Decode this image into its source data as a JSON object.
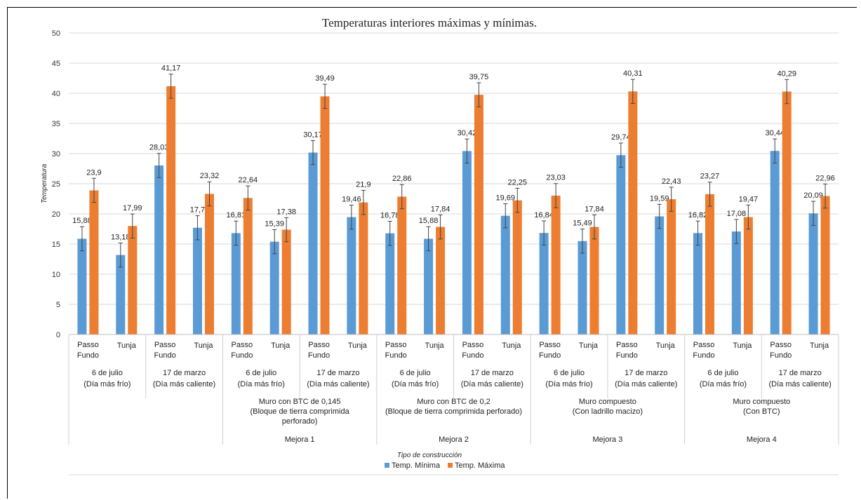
{
  "chart_data": {
    "type": "bar",
    "title": "Temperaturas interiores máximas y mínimas.",
    "xlabel": "Tipo de construcción",
    "ylabel": "Temperatura",
    "ylim": [
      0,
      50
    ],
    "yticks": [
      0,
      5,
      10,
      15,
      20,
      25,
      30,
      35,
      40,
      45,
      50
    ],
    "grid": true,
    "legend_position": "bottom",
    "categories": [
      {
        "name": [
          "Passo",
          "Fundo"
        ],
        "date": [
          "6 de julio",
          "(Día más frío)"
        ],
        "group": "",
        "group_note": []
      },
      {
        "name": [
          "Tunja"
        ],
        "date": [
          "6 de julio",
          "(Día más frío)"
        ],
        "group": "",
        "group_note": []
      },
      {
        "name": [
          "Passo",
          "Fundo"
        ],
        "date": [
          "17 de marzo",
          "(Día más caliente)"
        ],
        "group": "",
        "group_note": []
      },
      {
        "name": [
          "Tunja"
        ],
        "date": [
          "17 de marzo",
          "(Día más caliente)"
        ],
        "group": "",
        "group_note": []
      },
      {
        "name": [
          "Passo",
          "Fundo"
        ],
        "date": [
          "6 de julio",
          "(Día más frío)"
        ],
        "group": "Mejora 1",
        "group_note": [
          "Muro con BTC de 0,145",
          "(Bloque de tierra comprimida",
          "perforado)"
        ]
      },
      {
        "name": [
          "Tunja"
        ],
        "date": [
          "6 de julio",
          "(Día más frío)"
        ],
        "group": "Mejora 1",
        "group_note": [
          "Muro con BTC de 0,145",
          "(Bloque de tierra comprimida",
          "perforado)"
        ]
      },
      {
        "name": [
          "Passo",
          "Fundo"
        ],
        "date": [
          "17 de marzo",
          "(Día más caliente)"
        ],
        "group": "Mejora 1",
        "group_note": [
          "Muro con BTC de 0,145",
          "(Bloque de tierra comprimida",
          "perforado)"
        ]
      },
      {
        "name": [
          "Tunja"
        ],
        "date": [
          "17 de marzo",
          "(Día más caliente)"
        ],
        "group": "Mejora 1",
        "group_note": [
          "Muro con BTC de 0,145",
          "(Bloque de tierra comprimida",
          "perforado)"
        ]
      },
      {
        "name": [
          "Passo",
          "Fundo"
        ],
        "date": [
          "6 de julio",
          "(Día más frío)"
        ],
        "group": "Mejora 2",
        "group_note": [
          "Muro con BTC de 0,2",
          "(Bloque de tierra comprimida perforado)"
        ]
      },
      {
        "name": [
          "Tunja"
        ],
        "date": [
          "6 de julio",
          "(Día más frío)"
        ],
        "group": "Mejora 2",
        "group_note": [
          "Muro con BTC de 0,2",
          "(Bloque de tierra comprimida perforado)"
        ]
      },
      {
        "name": [
          "Passo",
          "Fundo"
        ],
        "date": [
          "17 de marzo",
          "(Día más caliente)"
        ],
        "group": "Mejora 2",
        "group_note": [
          "Muro con BTC de 0,2",
          "(Bloque de tierra comprimida perforado)"
        ]
      },
      {
        "name": [
          "Tunja"
        ],
        "date": [
          "17 de marzo",
          "(Día más caliente)"
        ],
        "group": "Mejora 2",
        "group_note": [
          "Muro con BTC de 0,2",
          "(Bloque de tierra comprimida perforado)"
        ]
      },
      {
        "name": [
          "Passo",
          "Fundo"
        ],
        "date": [
          "6 de julio",
          "(Día más frío)"
        ],
        "group": "Mejora 3",
        "group_note": [
          "Muro compuesto",
          "(Con ladrillo macizo)"
        ]
      },
      {
        "name": [
          "Tunja"
        ],
        "date": [
          "6 de julio",
          "(Día más frío)"
        ],
        "group": "Mejora 3",
        "group_note": [
          "Muro compuesto",
          "(Con ladrillo macizo)"
        ]
      },
      {
        "name": [
          "Passo",
          "Fundo"
        ],
        "date": [
          "17 de marzo",
          "(Día más caliente)"
        ],
        "group": "Mejora 3",
        "group_note": [
          "Muro compuesto",
          "(Con ladrillo macizo)"
        ]
      },
      {
        "name": [
          "Tunja"
        ],
        "date": [
          "17 de marzo",
          "(Día más caliente)"
        ],
        "group": "Mejora 3",
        "group_note": [
          "Muro compuesto",
          "(Con ladrillo macizo)"
        ]
      },
      {
        "name": [
          "Passo",
          "Fundo"
        ],
        "date": [
          "6 de julio",
          "(Día más frío)"
        ],
        "group": "Mejora 4",
        "group_note": [
          "Muro compuesto",
          "(Con BTC)"
        ]
      },
      {
        "name": [
          "Tunja"
        ],
        "date": [
          "6 de julio",
          "(Día más frío)"
        ],
        "group": "Mejora 4",
        "group_note": [
          "Muro compuesto",
          "(Con BTC)"
        ]
      },
      {
        "name": [
          "Passo",
          "Fundo"
        ],
        "date": [
          "17 de marzo",
          "(Día más caliente)"
        ],
        "group": "Mejora 4",
        "group_note": [
          "Muro compuesto",
          "(Con BTC)"
        ]
      },
      {
        "name": [
          "Tunja"
        ],
        "date": [
          "17 de marzo",
          "(Día más caliente)"
        ],
        "group": "Mejora 4",
        "group_note": [
          "Muro compuesto",
          "(Con BTC)"
        ]
      }
    ],
    "series": [
      {
        "name": "Temp. Mínima",
        "color": "#5b9bd5",
        "values": [
          15.88,
          13.18,
          28.03,
          17.7,
          16.81,
          15.39,
          30.17,
          19.46,
          16.78,
          15.88,
          30.42,
          19.69,
          16.84,
          15.49,
          29.74,
          19.59,
          16.82,
          17.08,
          30.44,
          20.09
        ],
        "labels": [
          "15,88",
          "13,18",
          "28,03",
          "17,7",
          "16,81",
          "15,39",
          "30,17",
          "19,46",
          "16,78",
          "15,88",
          "30,42",
          "19,69",
          "16,84",
          "15,49",
          "29,74",
          "19,59",
          "16,82",
          "17,08",
          "30,44",
          "20,09"
        ]
      },
      {
        "name": "Temp. Máxima",
        "color": "#ed7d31",
        "values": [
          23.9,
          17.99,
          41.17,
          23.32,
          22.64,
          17.38,
          39.49,
          21.9,
          22.86,
          17.84,
          39.75,
          22.25,
          23.03,
          17.84,
          40.31,
          22.43,
          23.27,
          19.47,
          40.29,
          22.96
        ],
        "labels": [
          "23,9",
          "17,99",
          "41,17",
          "23,32",
          "22,64",
          "17,38",
          "39,49",
          "21,9",
          "22,86",
          "17,84",
          "39,75",
          "22,25",
          "23,03",
          "17,84",
          "40,31",
          "22,43",
          "23,27",
          "19,47",
          "40,29",
          "22,96"
        ]
      }
    ],
    "error_bar": 2
  }
}
